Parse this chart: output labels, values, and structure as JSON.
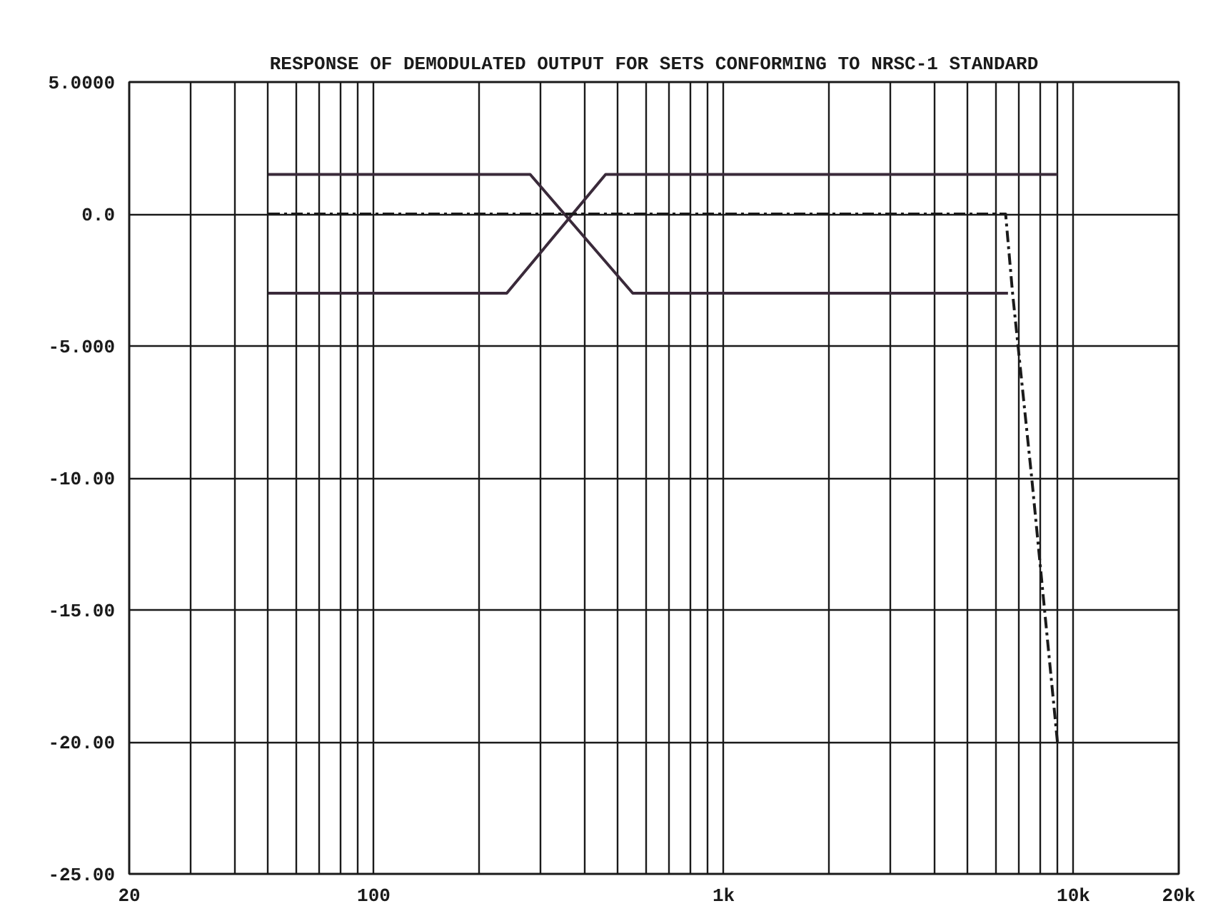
{
  "chart_data": {
    "type": "line",
    "title": "RESPONSE OF DEMODULATED OUTPUT FOR SETS CONFORMING TO NRSC-1 STANDARD",
    "log": "x",
    "grid": true,
    "marker": "none",
    "xlim": [
      20,
      20000
    ],
    "xticks": [
      20,
      {
        "value": 30,
        "label": null
      },
      {
        "value": 40,
        "label": null
      },
      {
        "value": 50,
        "label": null
      },
      {
        "value": 60,
        "label": null
      },
      {
        "value": 70,
        "label": null
      },
      {
        "value": 80,
        "label": null
      },
      {
        "value": 90,
        "label": null
      },
      100,
      {
        "value": 200,
        "label": null
      },
      {
        "value": 300,
        "label": null
      },
      {
        "value": 400,
        "label": null
      },
      {
        "value": 500,
        "label": null
      },
      {
        "value": 600,
        "label": null
      },
      {
        "value": 700,
        "label": null
      },
      {
        "value": 800,
        "label": null
      },
      {
        "value": 900,
        "label": null
      },
      {
        "value": 1000,
        "label": "1k"
      },
      {
        "value": 2000,
        "label": null
      },
      {
        "value": 3000,
        "label": null
      },
      {
        "value": 4000,
        "label": null
      },
      {
        "value": 5000,
        "label": null
      },
      {
        "value": 6000,
        "label": null
      },
      {
        "value": 7000,
        "label": null
      },
      {
        "value": 8000,
        "label": null
      },
      {
        "value": 9000,
        "label": null
      },
      {
        "value": 10000,
        "label": "10k"
      },
      {
        "value": 20000,
        "label": "20k"
      }
    ],
    "ylim": [
      -25,
      5
    ],
    "yticks": [
      {
        "value": 5,
        "label": "5.0000"
      },
      {
        "value": 0,
        "label": "0.0"
      },
      {
        "value": -5,
        "label": "-5.000"
      },
      {
        "value": -10,
        "label": "-10.00"
      },
      {
        "value": -15,
        "label": "-15.00"
      },
      {
        "value": -20,
        "label": "-20.00"
      },
      {
        "value": -25,
        "label": "-25.00"
      }
    ],
    "series": [
      {
        "color": "#3a2a3a",
        "line_style": "solid",
        "x": [
          50,
          280,
          550,
          6500
        ],
        "values": [
          1.5,
          1.5,
          -3.0,
          -3.0
        ]
      },
      {
        "color": "#3a2a3a",
        "line_style": "solid",
        "x": [
          50,
          240,
          460,
          9000
        ],
        "values": [
          -3.0,
          -3.0,
          1.5,
          1.5
        ]
      },
      {
        "color": "#1a1a1a",
        "line_style": "dashed",
        "x": [
          50,
          6400,
          6700,
          7600,
          9000
        ],
        "values": [
          0,
          0,
          -3,
          -10,
          -20
        ]
      }
    ]
  }
}
